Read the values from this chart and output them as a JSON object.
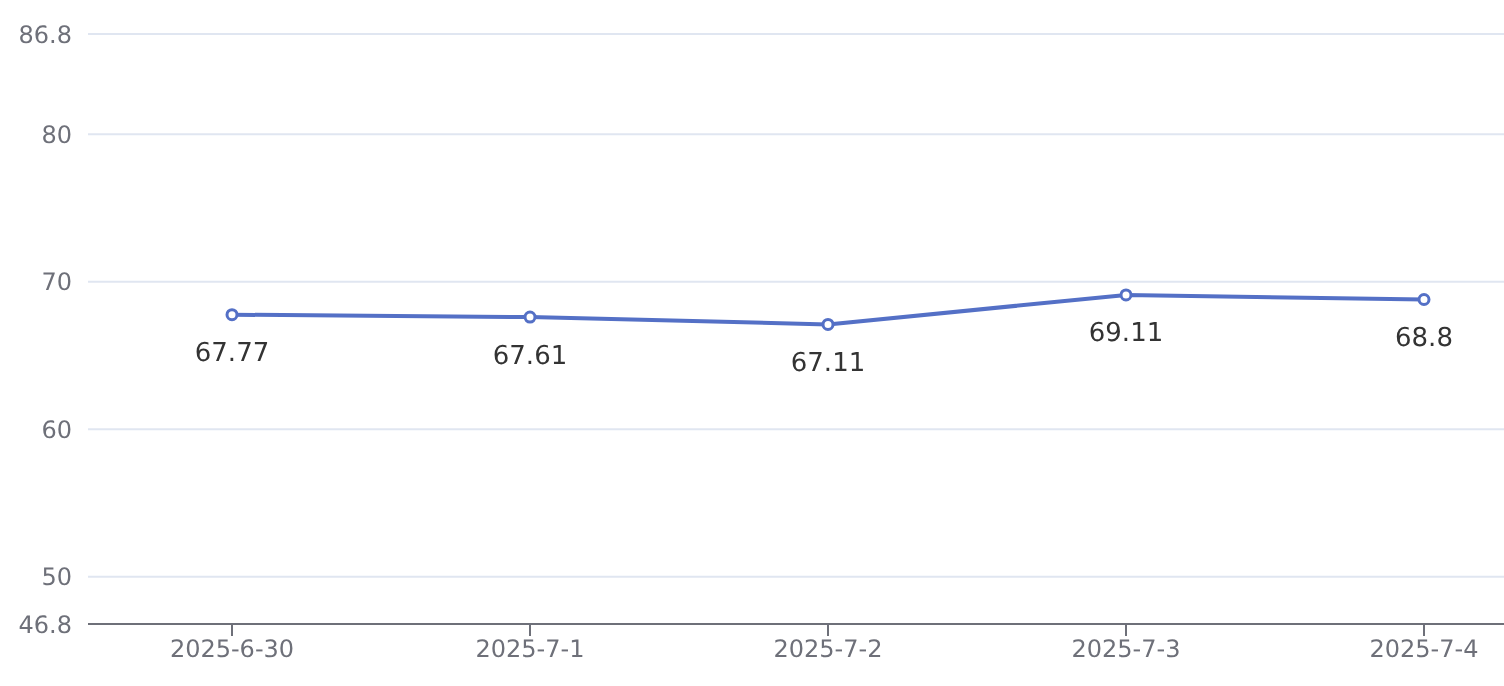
{
  "chart_data": {
    "type": "line",
    "categories": [
      "2025-6-30",
      "2025-7-1",
      "2025-7-2",
      "2025-7-3",
      "2025-7-4"
    ],
    "series": [
      {
        "color": "#5470c6",
        "values": [
          67.77,
          67.61,
          67.11,
          69.11,
          68.8
        ]
      }
    ],
    "ylim": [
      46.8,
      86.8
    ],
    "yticks": [
      46.8,
      50,
      60,
      70,
      80,
      86.8
    ],
    "grid": "y",
    "marker": "circle",
    "data_labels": true
  }
}
